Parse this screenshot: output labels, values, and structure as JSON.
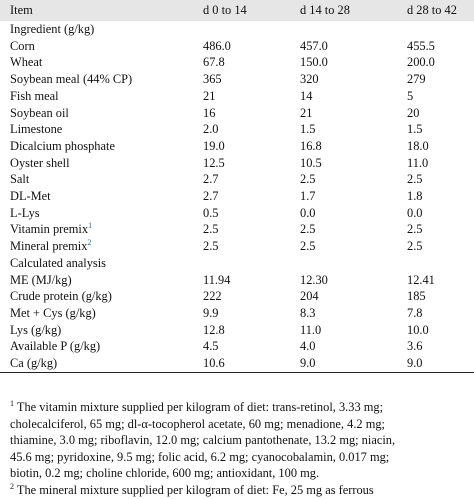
{
  "table": {
    "headers": [
      "Item",
      "d 0 to 14",
      "d 14 to 28",
      "d 28 to 42"
    ],
    "rows": [
      {
        "label": "Ingredient (g/kg)",
        "values": [
          "",
          "",
          ""
        ],
        "section": true
      },
      {
        "label": "Corn",
        "values": [
          "486.0",
          "457.0",
          "455.5"
        ]
      },
      {
        "label": "Wheat",
        "values": [
          "67.8",
          "150.0",
          "200.0"
        ]
      },
      {
        "label": "Soybean meal (44% CP)",
        "values": [
          "365",
          "320",
          "279"
        ]
      },
      {
        "label": "Fish meal",
        "values": [
          "21",
          "14",
          "5"
        ]
      },
      {
        "label": "Soybean oil",
        "values": [
          "16",
          "21",
          "20"
        ]
      },
      {
        "label": "Limestone",
        "values": [
          "2.0",
          "1.5",
          "1.5"
        ]
      },
      {
        "label": "Dicalcium phosphate",
        "values": [
          "19.0",
          "16.8",
          "18.0"
        ]
      },
      {
        "label": "Oyster shell",
        "values": [
          "12.5",
          "10.5",
          "11.0"
        ]
      },
      {
        "label": "Salt",
        "values": [
          "2.7",
          "2.5",
          "2.5"
        ]
      },
      {
        "label": "DL-Met",
        "values": [
          "2.7",
          "1.7",
          "1.8"
        ]
      },
      {
        "label": "L-Lys",
        "values": [
          "0.5",
          "0.0",
          "0.0"
        ]
      },
      {
        "label": "Vitamin premix",
        "footnote": "1",
        "values": [
          "2.5",
          "2.5",
          "2.5"
        ]
      },
      {
        "label": "Mineral premix",
        "footnote": "2",
        "values": [
          "2.5",
          "2.5",
          "2.5"
        ]
      },
      {
        "label": "Calculated analysis",
        "values": [
          "",
          "",
          ""
        ],
        "section": true
      },
      {
        "label": "ME (MJ/kg)",
        "values": [
          "11.94",
          "12.30",
          "12.41"
        ]
      },
      {
        "label": "Crude protein (g/kg)",
        "values": [
          "222",
          "204",
          "185"
        ]
      },
      {
        "label": "Met + Cys (g/kg)",
        "values": [
          "9.9",
          "8.3",
          "7.8"
        ]
      },
      {
        "label": "Lys (g/kg)",
        "values": [
          "12.8",
          "11.0",
          "10.0"
        ]
      },
      {
        "label": "Available P (g/kg)",
        "values": [
          "4.5",
          "4.0",
          "3.6"
        ]
      },
      {
        "label": "Ca (g/kg)",
        "values": [
          "10.6",
          "9.0",
          "9.0"
        ]
      }
    ]
  },
  "notes": [
    {
      "mark": "1",
      "lines": [
        "The vitamin mixture supplied per kilogram of diet: trans-retinol, 3.33 mg;",
        "cholecalciferol, 65 mg; dl-α-tocopherol acetate, 60 mg; menadione, 4.2 mg;",
        "thiamine, 3.0 mg; riboflavin, 12.0 mg; calcium pantothenate, 13.2 mg; niacin,",
        "45.6 mg; pyridoxine, 9.5 mg; folic acid, 6.2 mg; cyanocobalamin, 0.017 mg;",
        "biotin, 0.2 mg; choline chloride, 600 mg; antioxidant, 100 mg."
      ]
    },
    {
      "mark": "2",
      "lines": [
        "The mineral mixture supplied per kilogram of diet: Fe, 25 mg as ferrous"
      ]
    }
  ]
}
